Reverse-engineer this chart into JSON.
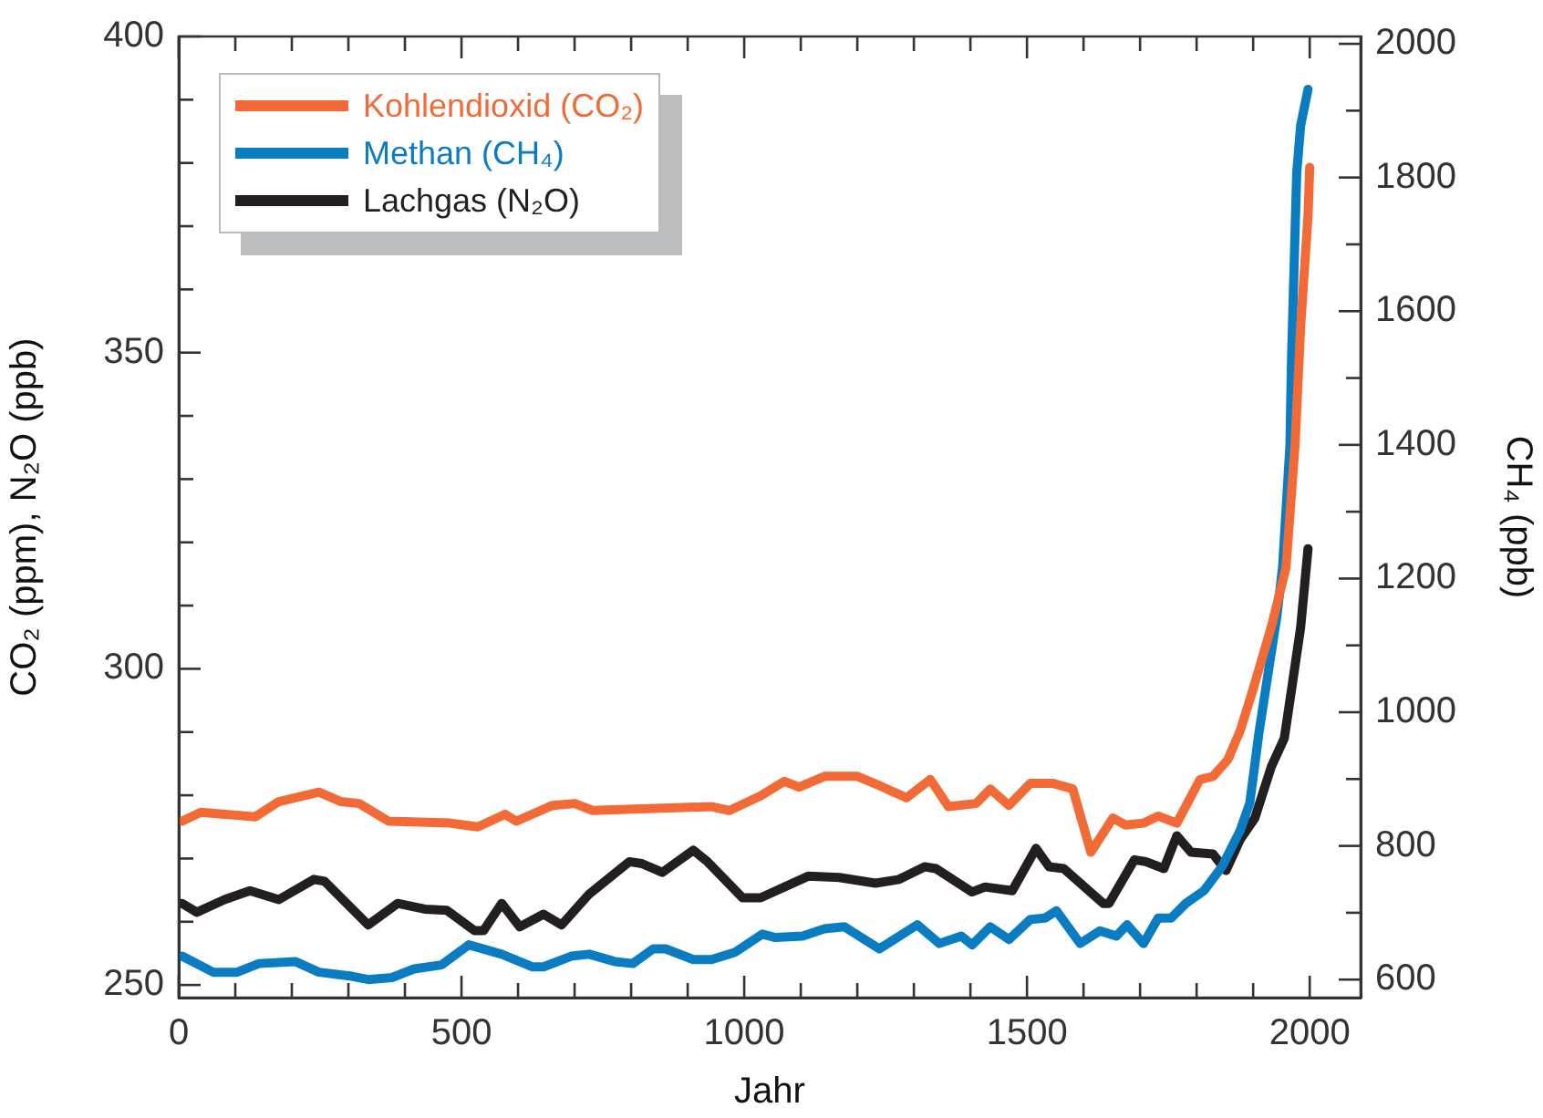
{
  "chart_data": {
    "type": "line",
    "xlabel": "Jahr",
    "ylabel": "CO₂ (ppm), N₂O (ppb)",
    "y2label": "CH₄ (ppb)",
    "xlim": [
      0,
      2090
    ],
    "xticks": [
      0,
      {
        "value": 100,
        "label": null
      },
      {
        "value": 200,
        "label": null
      },
      {
        "value": 300,
        "label": null
      },
      {
        "value": 400,
        "label": null
      },
      500,
      {
        "value": 600,
        "label": null
      },
      {
        "value": 700,
        "label": null
      },
      {
        "value": 800,
        "label": null
      },
      {
        "value": 900,
        "label": null
      },
      1000,
      {
        "value": 1100,
        "label": null
      },
      {
        "value": 1200,
        "label": null
      },
      {
        "value": 1300,
        "label": null
      },
      {
        "value": 1400,
        "label": null
      },
      1500,
      {
        "value": 1600,
        "label": null
      },
      {
        "value": 1700,
        "label": null
      },
      {
        "value": 1800,
        "label": null
      },
      {
        "value": 1900,
        "label": null
      },
      2000
    ],
    "ylim": [
      248,
      400
    ],
    "yticks": [
      250,
      {
        "value": 260,
        "label": null
      },
      {
        "value": 270,
        "label": null
      },
      {
        "value": 280,
        "label": null
      },
      {
        "value": 290,
        "label": null
      },
      300,
      {
        "value": 310,
        "label": null
      },
      {
        "value": 320,
        "label": null
      },
      {
        "value": 330,
        "label": null
      },
      {
        "value": 340,
        "label": null
      },
      350,
      {
        "value": 360,
        "label": null
      },
      {
        "value": 370,
        "label": null
      },
      {
        "value": 380,
        "label": null
      },
      {
        "value": 390,
        "label": null
      },
      400
    ],
    "y2lim": [
      573,
      2011
    ],
    "y2ticks": [
      600,
      {
        "value": 700,
        "label": null
      },
      800,
      {
        "value": 900,
        "label": null
      },
      1000,
      {
        "value": 1100,
        "label": null
      },
      1200,
      {
        "value": 1300,
        "label": null
      },
      1400,
      {
        "value": 1500,
        "label": null
      },
      1600,
      {
        "value": 1700,
        "label": null
      },
      1800,
      {
        "value": 1900,
        "label": null
      },
      2000
    ],
    "grid": false,
    "legend": "top left",
    "marker": "none",
    "line_style": "solid",
    "series": [
      {
        "name": "Kohlendioxid (CO₂)",
        "color": "#f26a36",
        "x": [
          6,
          39,
          135,
          177,
          248,
          287,
          319,
          371,
          480,
          529,
          577,
          597,
          661,
          700,
          732,
          942,
          974,
          1029,
          1071,
          1097,
          1142,
          1200,
          1240,
          1287,
          1329,
          1361,
          1410,
          1435,
          1468,
          1506,
          1545,
          1581,
          1613,
          1652,
          1674,
          1706,
          1732,
          1765,
          1806,
          1829,
          1855,
          1877,
          1900,
          1932,
          1958,
          1974,
          1984,
          1997,
          2000
        ],
        "values": [
          275.9,
          277.3,
          276.6,
          279,
          280.5,
          279,
          278.7,
          275.9,
          275.6,
          275,
          277,
          275.9,
          278.4,
          278.7,
          277.6,
          278.2,
          277.6,
          279.9,
          282.2,
          281.3,
          283,
          283,
          281.5,
          279.6,
          282.5,
          278.2,
          278.7,
          281,
          278.4,
          281.9,
          281.9,
          281,
          271,
          276.4,
          275.3,
          275.6,
          276.7,
          275.6,
          282.5,
          283,
          285.6,
          290.2,
          296.8,
          306.6,
          316,
          335.3,
          354.3,
          371.6,
          379.3
        ]
      },
      {
        "name": "Methan (CH₄)",
        "color": "#0a7cc1",
        "axis": "y2",
        "x": [
          6,
          61,
          103,
          142,
          206,
          248,
          306,
          335,
          377,
          416,
          465,
          513,
          571,
          626,
          645,
          694,
          726,
          771,
          803,
          839,
          861,
          910,
          942,
          984,
          1032,
          1055,
          1103,
          1142,
          1177,
          1239,
          1265,
          1306,
          1345,
          1384,
          1403,
          1435,
          1468,
          1506,
          1532,
          1552,
          1594,
          1629,
          1658,
          1677,
          1706,
          1732,
          1755,
          1781,
          1813,
          1845,
          1877,
          1894,
          1910,
          1942,
          1952,
          1965,
          1968,
          1977,
          1984,
          1997
        ],
        "values": [
          635,
          611,
          611,
          624,
          627,
          611,
          605,
          600,
          603,
          616,
          622,
          652,
          638,
          619,
          619,
          635,
          638,
          627,
          624,
          646,
          646,
          630,
          630,
          641,
          668,
          663,
          665,
          676,
          679,
          646,
          660,
          682,
          654,
          665,
          652,
          679,
          660,
          690,
          692,
          703,
          654,
          673,
          665,
          682,
          654,
          692,
          692,
          714,
          733,
          769,
          823,
          864,
          968,
          1144,
          1217,
          1399,
          1535,
          1807,
          1878,
          1932
        ]
      },
      {
        "name": "Lachgas (N₂O)",
        "color": "#231f20",
        "x": [
          6,
          32,
          81,
          126,
          177,
          200,
          239,
          258,
          335,
          387,
          435,
          474,
          523,
          539,
          571,
          603,
          645,
          677,
          726,
          797,
          819,
          855,
          910,
          935,
          997,
          1029,
          1113,
          1168,
          1232,
          1274,
          1319,
          1339,
          1403,
          1426,
          1474,
          1516,
          1539,
          1565,
          1635,
          1645,
          1690,
          1710,
          1742,
          1765,
          1790,
          1829,
          1852,
          1877,
          1903,
          1932,
          1955,
          1968,
          1984,
          1997
        ],
        "values": [
          262.9,
          261.5,
          263.5,
          264.9,
          263.5,
          264.7,
          266.7,
          266.4,
          259.5,
          262.9,
          262,
          261.8,
          258.6,
          258.6,
          262.9,
          259.2,
          261.2,
          259.5,
          264.4,
          269.5,
          269.2,
          267.8,
          271.3,
          269.5,
          263.8,
          263.8,
          267.2,
          267,
          266.1,
          266.7,
          268.7,
          268.4,
          264.7,
          265.5,
          264.9,
          271.6,
          268.7,
          268.4,
          262.9,
          262.9,
          269.8,
          269.5,
          268.4,
          273.6,
          271,
          270.7,
          268.1,
          273,
          276.4,
          284.5,
          289,
          296.8,
          306.6,
          319
        ]
      }
    ]
  }
}
